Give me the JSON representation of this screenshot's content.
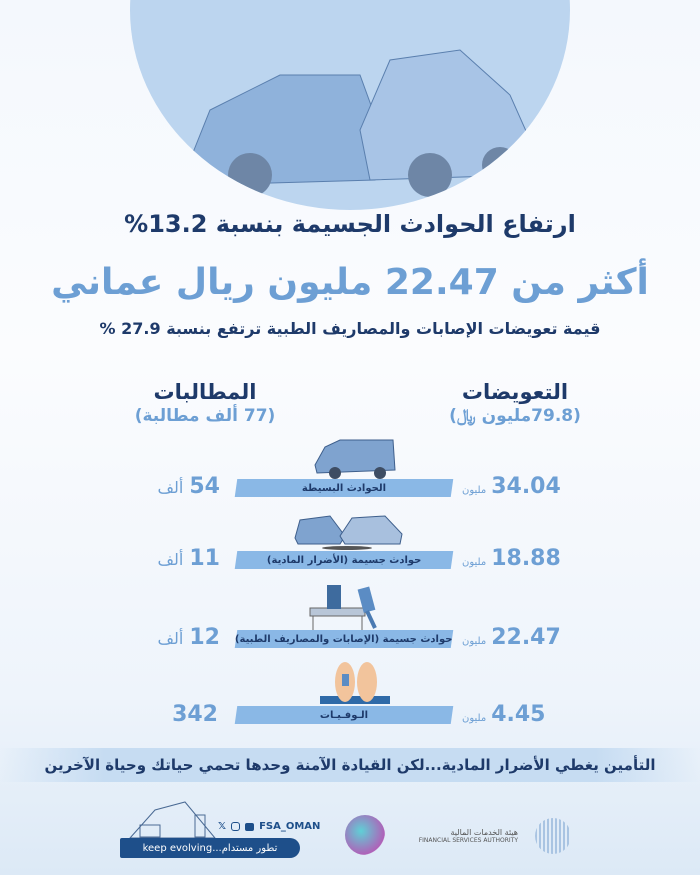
{
  "header": {
    "headline": "ارتفاع الحوادث الجسيمة بنسبة 13.2%",
    "big_figure": "أكثر من 22.47 مليون ريال عماني",
    "subline": "قيمة تعويضات الإصابات والمصاريف الطبية ترتفع بنسبة 27.9 %"
  },
  "columns": {
    "compensation": {
      "title": "التعويضات",
      "total": "(79.8مليون ﷼)"
    },
    "claims": {
      "title": "المطالبات",
      "total": "(77 ألف مطالبة)"
    }
  },
  "rows": [
    {
      "category": "الحوادث البسيطة",
      "claims": "54",
      "claims_unit": "ألف",
      "compensation": "34.04",
      "compensation_unit": "مليون",
      "icon": "damaged-van-icon"
    },
    {
      "category": "حوادث جسيمة (الأضرار المادية)",
      "claims": "11",
      "claims_unit": "ألف",
      "compensation": "18.88",
      "compensation_unit": "مليون",
      "icon": "car-collision-icon"
    },
    {
      "category": "حوادث جسيمة (الإصابات والمصاريف الطبية)",
      "claims": "12",
      "claims_unit": "ألف",
      "compensation": "22.47",
      "compensation_unit": "مليون",
      "icon": "hospital-stretcher-icon"
    },
    {
      "category": "الـوفـيـات",
      "claims": "342",
      "claims_unit": "",
      "compensation": "4.45",
      "compensation_unit": "مليون",
      "icon": "deceased-feet-icon"
    }
  ],
  "slogan": "التأمين يغطي الأضرار المادية...لكن القيادة الآمنة وحدها تحمي حياتك وحياة الآخرين",
  "footer": {
    "handle": "FSA_OMAN",
    "tagline": "keep evolving...تطور مستدام",
    "authority_ar": "هيئة الخدمات المالية",
    "authority_en": "FINANCIAL SERVICES AUTHORITY",
    "vision_logo": "رؤية عمان 2040"
  },
  "colors": {
    "navy": "#1e3a6a",
    "accent": "#6d9fd4",
    "bar": "#8ab8e6"
  }
}
